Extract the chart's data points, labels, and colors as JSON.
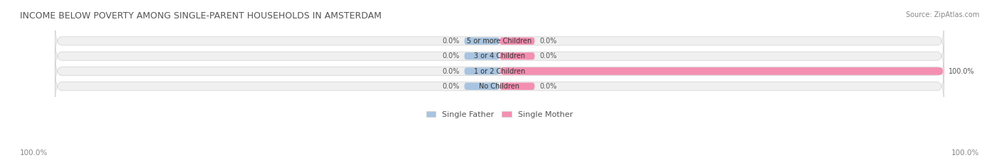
{
  "title": "INCOME BELOW POVERTY AMONG SINGLE-PARENT HOUSEHOLDS IN AMSTERDAM",
  "source": "Source: ZipAtlas.com",
  "categories": [
    "No Children",
    "1 or 2 Children",
    "3 or 4 Children",
    "5 or more Children"
  ],
  "single_father": [
    0.0,
    0.0,
    0.0,
    0.0
  ],
  "single_mother": [
    0.0,
    100.0,
    0.0,
    0.0
  ],
  "father_color": "#a8c4e0",
  "mother_color": "#f48fb1",
  "bar_bg_color": "#f0f0f0",
  "bar_border_color": "#d0d0d0",
  "title_color": "#555555",
  "source_color": "#888888",
  "label_color": "#555555",
  "axis_label_color": "#888888",
  "figsize": [
    14.06,
    2.33
  ],
  "dpi": 100,
  "xlim": [
    -100,
    100
  ],
  "bar_height": 0.55,
  "bg_color": "#ffffff"
}
